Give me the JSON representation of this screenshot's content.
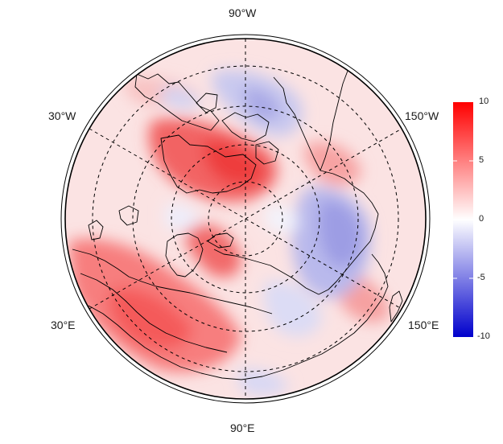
{
  "longitude_labels": {
    "top": "90°W",
    "bottom": "90°E",
    "upper_left": "30°W",
    "lower_left": "30°E",
    "upper_right": "150°W",
    "lower_right": "150°E"
  },
  "colorbar": {
    "ticks": [
      "10",
      "5",
      "0",
      "-5",
      "-10"
    ],
    "min": -10,
    "max": 10,
    "colors": {
      "high": "#ff0000",
      "mid": "#ffffff",
      "low": "#0000cc"
    }
  },
  "map": {
    "projection": "north-polar-stereographic",
    "background": "#fbe3e3",
    "graticule_style": "dashed",
    "land_outline_color": "#000000"
  }
}
